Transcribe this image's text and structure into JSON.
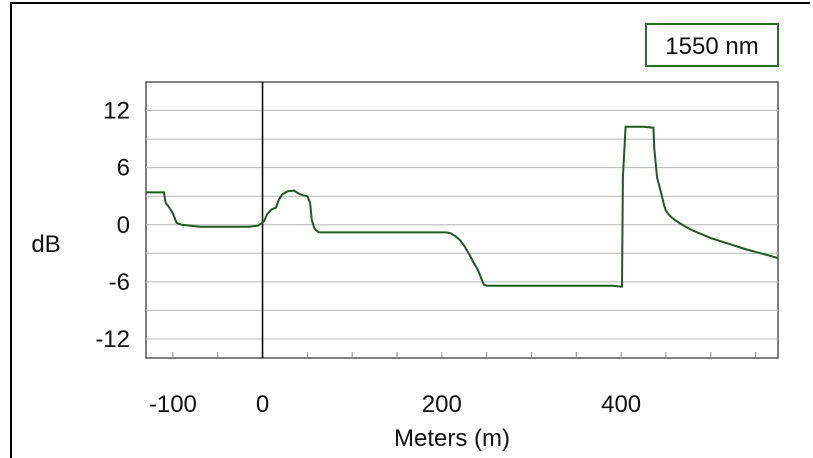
{
  "chart_data": {
    "type": "line",
    "title": "",
    "xlabel": "Meters (m)",
    "ylabel": "dB",
    "xlim": [
      -130,
      575
    ],
    "ylim": [
      -14,
      15
    ],
    "x_ticks": [
      -100,
      0,
      200,
      400
    ],
    "y_ticks": [
      12,
      6,
      0,
      -6,
      -12
    ],
    "grid": true,
    "legend": {
      "label": "1550 nm",
      "placement": "top-right"
    },
    "colors": {
      "trace": "#1f5a1f",
      "grid": "#b8b8b8",
      "legend_border": "#2d6b2d"
    },
    "marker_x": 0,
    "series": [
      {
        "x": [
          -130,
          -110,
          -108,
          -104,
          -100,
          -96,
          -90,
          -70,
          -40,
          -15,
          -5,
          -2,
          2,
          5,
          10,
          15,
          18,
          22,
          28,
          35,
          40,
          45,
          50,
          53,
          55,
          58,
          60,
          63,
          70,
          120,
          200,
          205,
          210,
          215,
          220,
          225,
          230,
          235,
          240,
          243,
          245,
          247,
          250,
          255,
          300,
          350,
          390,
          400,
          401,
          402,
          405,
          410,
          425,
          436,
          437,
          440,
          445,
          448,
          450,
          453,
          456,
          460,
          465,
          470,
          480,
          500,
          520,
          540,
          560,
          575
        ],
        "y": [
          3.4,
          3.4,
          2.3,
          1.8,
          1.2,
          0.2,
          0.0,
          -0.2,
          -0.2,
          -0.2,
          -0.1,
          0.1,
          0.4,
          1.1,
          1.6,
          1.8,
          2.6,
          3.2,
          3.5,
          3.6,
          3.3,
          3.1,
          3.0,
          2.3,
          0.5,
          -0.4,
          -0.6,
          -0.8,
          -0.8,
          -0.8,
          -0.8,
          -0.8,
          -0.9,
          -1.2,
          -1.6,
          -2.2,
          -3.0,
          -3.9,
          -4.7,
          -5.4,
          -5.9,
          -6.3,
          -6.4,
          -6.4,
          -6.4,
          -6.4,
          -6.4,
          -6.5,
          -6.5,
          5.0,
          10.3,
          10.3,
          10.3,
          10.2,
          8.0,
          5.0,
          3.2,
          2.0,
          1.5,
          1.1,
          0.8,
          0.5,
          0.2,
          -0.1,
          -0.6,
          -1.4,
          -2.0,
          -2.6,
          -3.1,
          -3.5
        ]
      }
    ]
  }
}
